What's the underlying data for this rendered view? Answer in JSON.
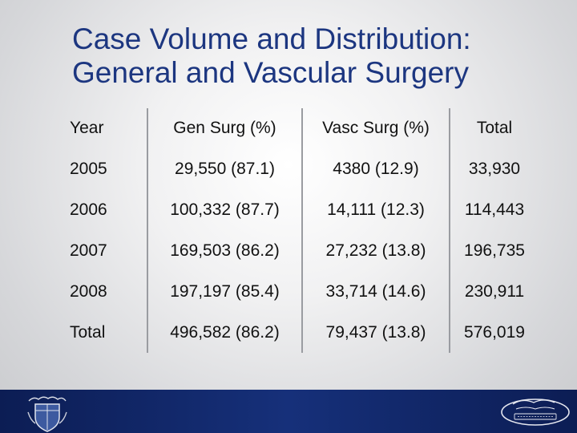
{
  "title": {
    "line1": "Case Volume and Distribution:",
    "line2": "General and Vascular Surgery"
  },
  "table": {
    "headers": [
      "Year",
      "Gen Surg (%)",
      "Vasc Surg (%)",
      "Total"
    ],
    "rows": [
      [
        "2005",
        "29,550 (87.1)",
        "4380 (12.9)",
        "33,930"
      ],
      [
        "2006",
        "100,332 (87.7)",
        "14,111 (12.3)",
        "114,443"
      ],
      [
        "2007",
        "169,503 (86.2)",
        "27,232 (13.8)",
        "196,735"
      ],
      [
        "2008",
        "197,197 (85.4)",
        "33,714 (14.6)",
        "230,911"
      ],
      [
        "Total",
        "496,582 (86.2)",
        "79,437 (13.8)",
        "576,019"
      ]
    ]
  },
  "colors": {
    "title": "#1c3680",
    "footer": "#16307a"
  },
  "footer": {
    "left_logo": "crest-logo-icon",
    "right_logo": "henry-ford-health-system-logo"
  }
}
